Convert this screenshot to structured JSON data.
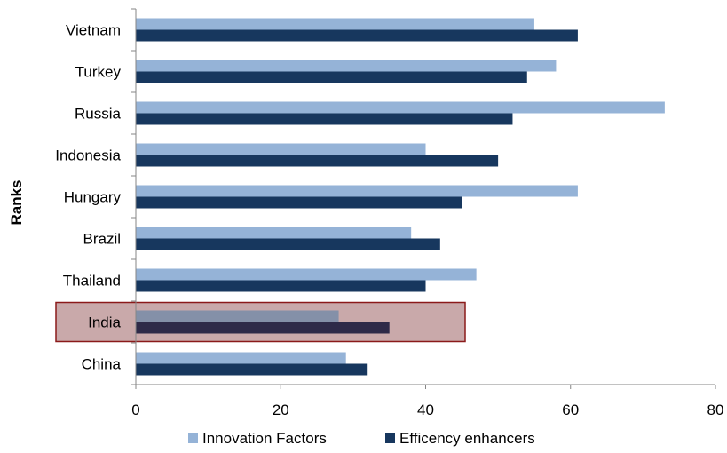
{
  "chart_data": {
    "type": "bar",
    "orientation": "horizontal",
    "title": "",
    "xlabel": "",
    "ylabel": "Ranks",
    "categories": [
      "Vietnam",
      "Turkey",
      "Russia",
      "Indonesia",
      "Hungary",
      "Brazil",
      "Thailand",
      "India",
      "China"
    ],
    "series": [
      {
        "name": "Innovation Factors",
        "color": "#95b3d7",
        "values": [
          55,
          58,
          73,
          40,
          61,
          38,
          47,
          28,
          29
        ]
      },
      {
        "name": "Efficency enhancers",
        "color": "#17375e",
        "values": [
          61,
          54,
          52,
          50,
          45,
          42,
          40,
          35,
          32
        ]
      }
    ],
    "xlim": [
      0,
      80
    ],
    "xticks": [
      0,
      20,
      40,
      60,
      80
    ],
    "grid": false,
    "legend": "bottom",
    "highlight": {
      "category": "India",
      "fill": "#c9a9aa",
      "border": "#8b1a1a"
    }
  }
}
